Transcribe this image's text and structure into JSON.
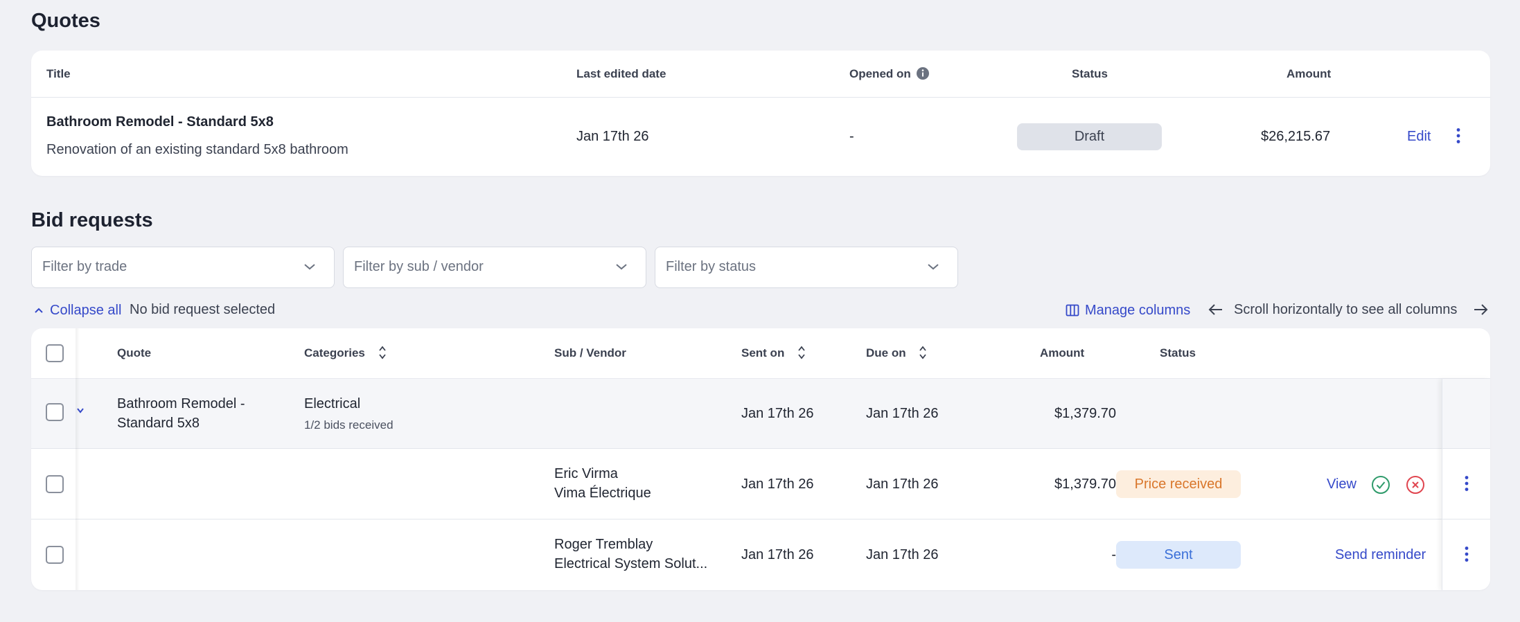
{
  "quotes": {
    "title": "Quotes",
    "headers": {
      "title": "Title",
      "last_edited": "Last edited date",
      "opened_on": "Opened on",
      "status": "Status",
      "amount": "Amount"
    },
    "row": {
      "title": "Bathroom Remodel - Standard 5x8",
      "description": "Renovation of an existing standard 5x8 bathroom",
      "last_edited": "Jan 17th 26",
      "opened_on": "-",
      "status": "Draft",
      "amount": "$26,215.67",
      "edit_label": "Edit"
    }
  },
  "bids": {
    "title": "Bid requests",
    "filters": {
      "trade": "Filter by trade",
      "vendor": "Filter by sub / vendor",
      "status": "Filter by status"
    },
    "toolbar": {
      "collapse_all": "Collapse all",
      "selection": "No bid request selected",
      "manage_columns": "Manage columns",
      "scroll_hint": "Scroll horizontally to see all columns"
    },
    "headers": {
      "quote": "Quote",
      "categories": "Categories",
      "vendor": "Sub / Vendor",
      "sent_on": "Sent on",
      "due_on": "Due on",
      "amount": "Amount",
      "status": "Status"
    },
    "group_row": {
      "quote_line1": "Bathroom Remodel -",
      "quote_line2": "Standard 5x8",
      "category": "Electrical",
      "bids_received": "1/2 bids received",
      "sent_on": "Jan 17th 26",
      "due_on": "Jan 17th 26",
      "amount": "$1,379.70"
    },
    "rows": [
      {
        "vendor_name": "Eric Virma",
        "vendor_company": "Vima Électrique",
        "sent_on": "Jan 17th 26",
        "due_on": "Jan 17th 26",
        "amount": "$1,379.70",
        "status": "Price received",
        "action": "View"
      },
      {
        "vendor_name": "Roger Tremblay",
        "vendor_company": "Electrical System Solut...",
        "sent_on": "Jan 17th 26",
        "due_on": "Jan 17th 26",
        "amount": "-",
        "status": "Sent",
        "action": "Send reminder"
      }
    ]
  },
  "colors": {
    "accent": "#3549c9",
    "draft_bg": "#dfe2e9",
    "price_received_bg": "#fdeede",
    "price_received_text": "#d9762a",
    "sent_bg": "#dde9fb",
    "sent_text": "#3a6fd8",
    "accept_green": "#2f9b6b",
    "reject_red": "#e0454f"
  }
}
